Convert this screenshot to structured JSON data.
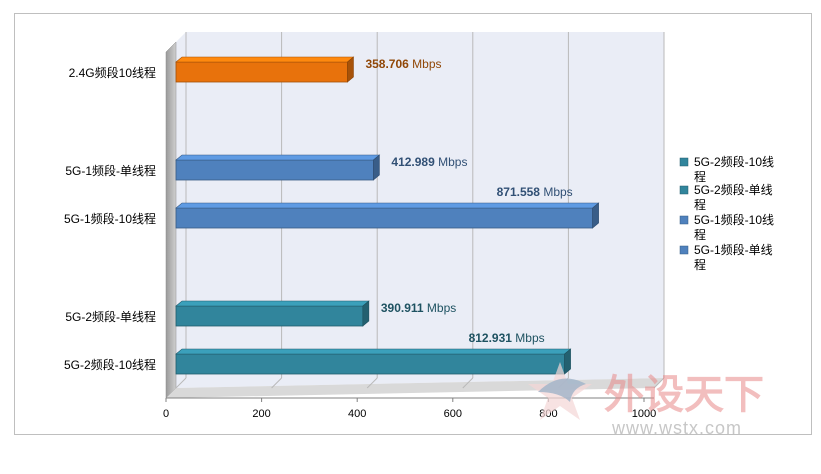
{
  "chart_data": {
    "type": "bar",
    "orientation": "horizontal",
    "unit": "Mbps",
    "xlim": [
      0,
      1000
    ],
    "x_ticks": [
      "0",
      "200",
      "400",
      "600",
      "800",
      "1000"
    ],
    "grid": true,
    "legend_position": "right",
    "bars": [
      {
        "category": "2.4G频段10线程",
        "value": 358.706,
        "label": "358.706",
        "color": "#e8720c"
      },
      {
        "category": "5G-1频段-单线程",
        "value": 412.989,
        "label": "412.989",
        "color": "#4f81bd"
      },
      {
        "category": "5G-1频段-10线程",
        "value": 871.558,
        "label": "871.558",
        "color": "#4f81bd"
      },
      {
        "category": "5G-2频段-单线程",
        "value": 390.911,
        "label": "390.911",
        "color": "#31859c"
      },
      {
        "category": "5G-2频段-10线程",
        "value": 812.931,
        "label": "812.931",
        "color": "#31859c"
      }
    ],
    "legend": [
      {
        "name": "5G-2频段-10线程",
        "color": "#31859c"
      },
      {
        "name": "5G-2频段-单线程",
        "color": "#31859c"
      },
      {
        "name": "5G-1频段-10线程",
        "color": "#4f81bd"
      },
      {
        "name": "5G-1频段-单线程",
        "color": "#4f81bd"
      }
    ]
  },
  "watermark": {
    "text": "外设天下",
    "url": "www.wstx.com"
  }
}
